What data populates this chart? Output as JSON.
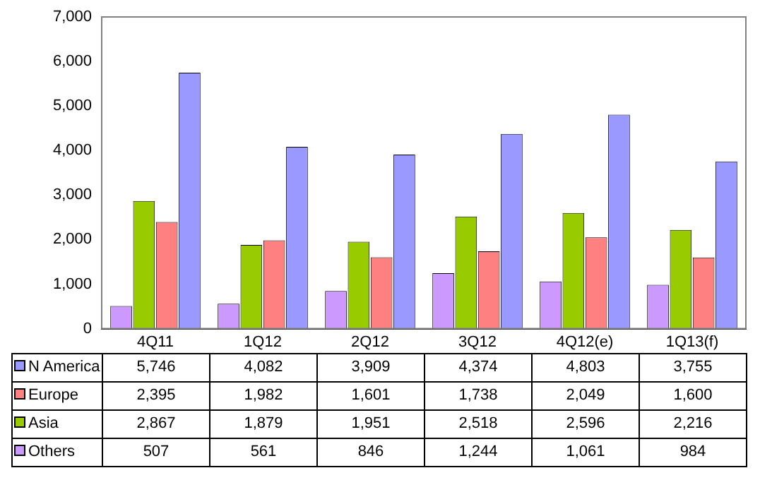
{
  "chart_data": {
    "type": "bar",
    "categories": [
      "4Q11",
      "1Q12",
      "2Q12",
      "3Q12",
      "4Q12(e)",
      "1Q13(f)"
    ],
    "series": [
      {
        "name": "Others",
        "color": "#cc99ff",
        "values": [
          507,
          561,
          846,
          1244,
          1061,
          984
        ],
        "value_labels": [
          "507",
          "561",
          "846",
          "1,244",
          "1,061",
          "984"
        ]
      },
      {
        "name": "Asia",
        "color": "#99cc00",
        "values": [
          2867,
          1879,
          1951,
          2518,
          2596,
          2216
        ],
        "value_labels": [
          "2,867",
          "1,879",
          "1,951",
          "2,518",
          "2,596",
          "2,216"
        ]
      },
      {
        "name": "Europe",
        "color": "#ff8080",
        "values": [
          2395,
          1982,
          1601,
          1738,
          2049,
          1600
        ],
        "value_labels": [
          "2,395",
          "1,982",
          "1,601",
          "1,738",
          "2,049",
          "1,600"
        ]
      },
      {
        "name": "N America",
        "color": "#9999ff",
        "values": [
          5746,
          4082,
          3909,
          4374,
          4803,
          3755
        ],
        "value_labels": [
          "5,746",
          "4,082",
          "3,909",
          "4,374",
          "4,803",
          "3,755"
        ]
      }
    ],
    "ylim": [
      0,
      7000
    ],
    "yticks": [
      0,
      {
        "value": 1000,
        "label": "1,000"
      },
      {
        "value": 2000,
        "label": "2,000"
      },
      {
        "value": 3000,
        "label": "3,000"
      },
      {
        "value": 4000,
        "label": "4,000"
      },
      {
        "value": 5000,
        "label": "5,000"
      },
      {
        "value": 6000,
        "label": "6,000"
      },
      {
        "value": 7000,
        "label": "7,000"
      }
    ],
    "grid": false,
    "legend": "bottom left"
  }
}
